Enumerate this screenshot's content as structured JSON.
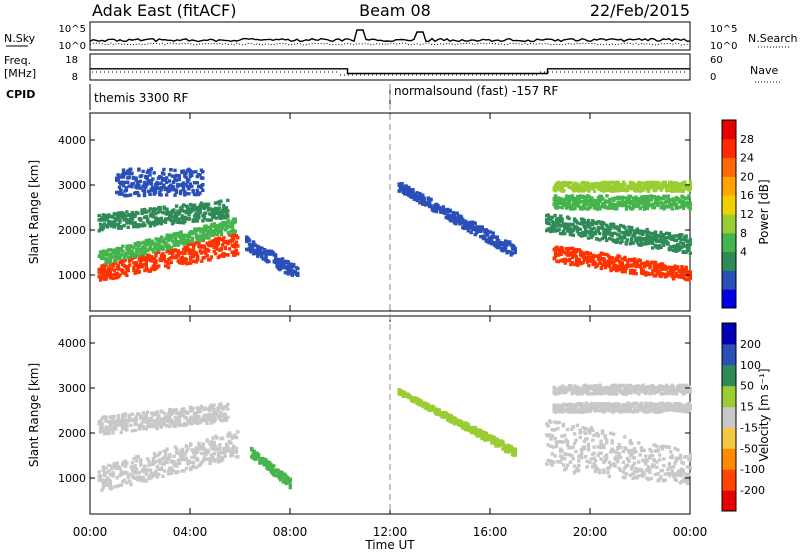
{
  "header": {
    "radar": "Adak East (fitACF)",
    "beam": "Beam 08",
    "date": "22/Feb/2015"
  },
  "status_panel": {
    "nsky_label": "N.Sky",
    "nsearch_label": "N.Search",
    "noise_ticks": [
      "10^5",
      "10^0"
    ],
    "freq_label": "Freq.",
    "freq_unit": "[MHz]",
    "freq_ticks": [
      "18",
      "8"
    ],
    "nave_label": "Nave",
    "nave_ticks": [
      "60",
      "0"
    ],
    "cpid_label": "CPID",
    "cpid_segments": [
      {
        "label": "themis 3300 RF",
        "start_hour": 0
      },
      {
        "label": "normalsound (fast) -157 RF",
        "start_hour": 12
      }
    ],
    "freq_steps": [
      {
        "from_hour": 0,
        "to_hour": 10.3,
        "mhz": 12.3
      },
      {
        "from_hour": 10.3,
        "to_hour": 18.3,
        "mhz": 10.5
      },
      {
        "from_hour": 18.3,
        "to_hour": 24,
        "mhz": 12.3
      }
    ]
  },
  "chart_data": [
    {
      "type": "heatmap",
      "name": "power",
      "ylabel": "Slant Range [km]",
      "yticks": [
        1000,
        2000,
        3000,
        4000
      ],
      "ylim": [
        200,
        4600
      ],
      "xlim": [
        0,
        24
      ],
      "colorbar": {
        "label": "Power [dB]",
        "ticks": [
          "28",
          "24",
          "20",
          "16",
          "12",
          "8",
          "4"
        ],
        "colors": [
          "#0000e6",
          "#2a4fb8",
          "#2e8b57",
          "#46b44c",
          "#9acd32",
          "#f0d000",
          "#ffa500",
          "#ff6a00",
          "#ff2a00",
          "#e60000"
        ]
      },
      "bands": [
        {
          "t0": 0.3,
          "t1": 5.9,
          "r0": 900,
          "r1": 1250,
          "r0_end": 1500,
          "r1_end": 2000,
          "color": "#ff3300"
        },
        {
          "t0": 0.3,
          "t1": 5.8,
          "r0": 1250,
          "r1": 1550,
          "r0_end": 2000,
          "r1_end": 2300,
          "color": "#46b44c"
        },
        {
          "t0": 0.3,
          "t1": 5.5,
          "r0": 2000,
          "r1": 2400,
          "r0_end": 2300,
          "r1_end": 2700,
          "color": "#2e8b57"
        },
        {
          "t0": 1.0,
          "t1": 4.5,
          "r0": 2800,
          "r1": 3400,
          "r0_end": 2800,
          "r1_end": 3400,
          "color": "#2a4fb8"
        },
        {
          "t0": 6.2,
          "t1": 8.3,
          "r0": 1600,
          "r1": 1900,
          "r0_end": 900,
          "r1_end": 1200,
          "color": "#2a4fb8"
        },
        {
          "t0": 12.3,
          "t1": 17.0,
          "r0": 2900,
          "r1": 3100,
          "r0_end": 1400,
          "r1_end": 1700,
          "color": "#2a4fb8"
        },
        {
          "t0": 18.2,
          "t1": 24.0,
          "r0": 2000,
          "r1": 2400,
          "r0_end": 1500,
          "r1_end": 1900,
          "color": "#2e8b57"
        },
        {
          "t0": 18.5,
          "t1": 24.0,
          "r0": 1300,
          "r1": 1700,
          "r0_end": 900,
          "r1_end": 1200,
          "color": "#ff3300"
        },
        {
          "t0": 18.5,
          "t1": 24.0,
          "r0": 2500,
          "r1": 2800,
          "r0_end": 2500,
          "r1_end": 2800,
          "color": "#46b44c"
        },
        {
          "t0": 18.5,
          "t1": 24.0,
          "r0": 2900,
          "r1": 3100,
          "r0_end": 2900,
          "r1_end": 3100,
          "color": "#9acd32"
        }
      ]
    },
    {
      "type": "heatmap",
      "name": "velocity",
      "ylabel": "Slant Range [km]",
      "yticks": [
        1000,
        2000,
        3000,
        4000
      ],
      "ylim": [
        200,
        4600
      ],
      "xlim": [
        0,
        24
      ],
      "xlabel": "Time UT",
      "xticks": [
        "00:00",
        "04:00",
        "08:00",
        "12:00",
        "16:00",
        "20:00",
        "00:00"
      ],
      "colorbar": {
        "label": "Velocity [m s⁻¹]",
        "ticks": [
          "200",
          "100",
          "50",
          "15",
          "-15",
          "-50",
          "-100",
          "-200"
        ],
        "colors": [
          "#e60000",
          "#ff4500",
          "#ff8c00",
          "#f5c842",
          "#c8c8c8",
          "#9acd32",
          "#2e8b57",
          "#2a4fb8",
          "#0000b4"
        ]
      },
      "bands": [
        {
          "t0": 0.3,
          "t1": 5.9,
          "r0": 700,
          "r1": 1300,
          "r0_end": 1500,
          "r1_end": 2100,
          "color": "#c8c8c8"
        },
        {
          "t0": 0.3,
          "t1": 5.5,
          "r0": 2000,
          "r1": 2400,
          "r0_end": 2300,
          "r1_end": 2700,
          "color": "#c8c8c8"
        },
        {
          "t0": 6.4,
          "t1": 8.0,
          "r0": 1500,
          "r1": 1700,
          "r0_end": 800,
          "r1_end": 1000,
          "color": "#46b44c"
        },
        {
          "t0": 12.3,
          "t1": 17.0,
          "r0": 2900,
          "r1": 3000,
          "r0_end": 1500,
          "r1_end": 1700,
          "color": "#9acd32"
        },
        {
          "t0": 18.2,
          "t1": 24.0,
          "r0": 1200,
          "r1": 2400,
          "r0_end": 900,
          "r1_end": 1600,
          "color": "#c8c8c8"
        },
        {
          "t0": 18.5,
          "t1": 24.0,
          "r0": 2500,
          "r1": 2700,
          "r0_end": 2500,
          "r1_end": 2700,
          "color": "#c8c8c8"
        },
        {
          "t0": 18.5,
          "t1": 24.0,
          "r0": 2900,
          "r1": 3100,
          "r0_end": 2900,
          "r1_end": 3100,
          "color": "#c8c8c8"
        }
      ]
    }
  ]
}
